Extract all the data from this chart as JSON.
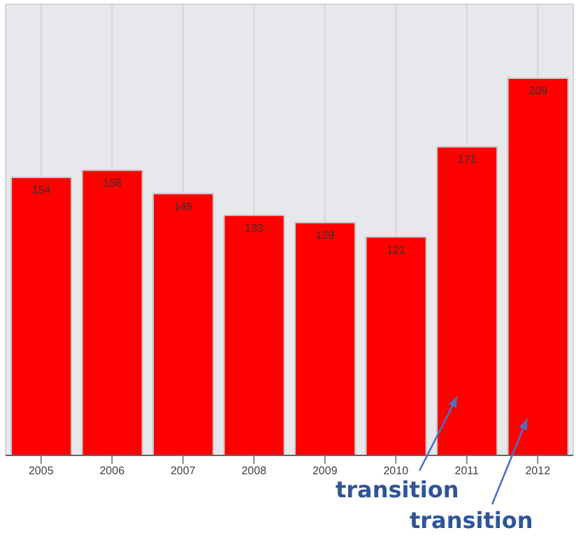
{
  "chart_data": {
    "type": "bar",
    "categories": [
      "2005",
      "2006",
      "2007",
      "2008",
      "2009",
      "2010",
      "2011",
      "2012"
    ],
    "values": [
      154,
      158,
      145,
      133,
      129,
      121,
      171,
      209
    ],
    "color": "#ff0000",
    "ylim": [
      0,
      250
    ],
    "tick_labels": "x",
    "grid": true,
    "data_labels": true,
    "annotations": [
      "transition",
      "transition"
    ]
  }
}
